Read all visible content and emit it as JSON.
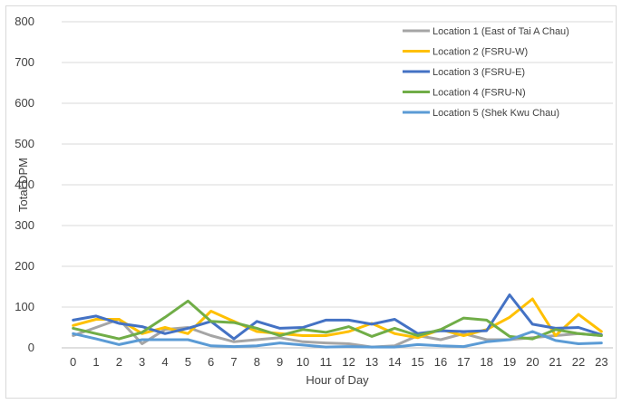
{
  "chart_data": {
    "type": "line",
    "title": "",
    "xlabel": "Hour of Day",
    "ylabel": "Total DPM",
    "ylim": [
      0,
      800
    ],
    "yticks": [
      "0",
      "100",
      "200",
      "300",
      "400",
      "500",
      "600",
      "700",
      "800"
    ],
    "categories": [
      "0",
      "1",
      "2",
      "3",
      "4",
      "5",
      "6",
      "7",
      "8",
      "9",
      "10",
      "11",
      "12",
      "13",
      "14",
      "15",
      "16",
      "17",
      "18",
      "19",
      "20",
      "21",
      "22",
      "23"
    ],
    "grid": "horizontal",
    "legend_position": "top-right",
    "series": [
      {
        "name": "Location 1 (East of Tai A Chau)",
        "color": "#a5a5a5",
        "values": [
          30,
          50,
          70,
          10,
          45,
          50,
          30,
          15,
          20,
          25,
          15,
          12,
          10,
          2,
          5,
          30,
          20,
          35,
          20,
          20,
          25,
          30,
          35,
          30
        ]
      },
      {
        "name": "Location 2 (FSRU-W)",
        "color": "#ffc000",
        "values": [
          55,
          70,
          70,
          35,
          50,
          35,
          90,
          65,
          40,
          35,
          30,
          30,
          40,
          60,
          35,
          25,
          45,
          30,
          45,
          75,
          120,
          30,
          82,
          40
        ]
      },
      {
        "name": "Location 3 (FSRU-E)",
        "color": "#4472c4",
        "values": [
          68,
          78,
          60,
          52,
          35,
          48,
          65,
          22,
          65,
          48,
          50,
          68,
          68,
          58,
          70,
          35,
          42,
          40,
          42,
          130,
          58,
          48,
          50,
          32
        ]
      },
      {
        "name": "Location 4 (FSRU-N)",
        "color": "#70ad47",
        "values": [
          48,
          35,
          22,
          38,
          75,
          115,
          65,
          62,
          48,
          30,
          45,
          38,
          52,
          28,
          48,
          30,
          45,
          73,
          68,
          28,
          22,
          45,
          35,
          30
        ]
      },
      {
        "name": "Location 5 (Shek Kwu Chau)",
        "color": "#5b9bd5",
        "values": [
          35,
          22,
          8,
          20,
          20,
          20,
          5,
          3,
          5,
          12,
          7,
          2,
          3,
          2,
          2,
          8,
          5,
          3,
          15,
          20,
          40,
          18,
          10,
          12
        ]
      }
    ]
  }
}
